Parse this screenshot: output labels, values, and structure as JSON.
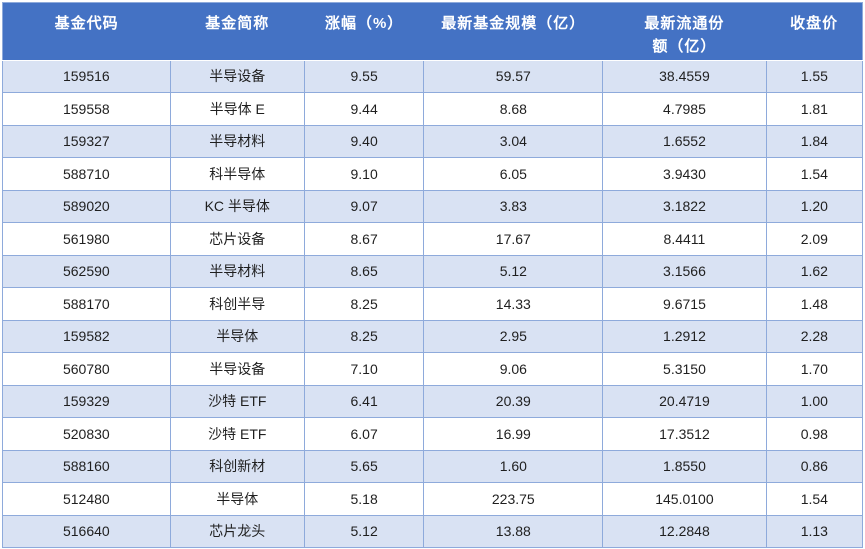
{
  "colors": {
    "header_bg": "#4472C4",
    "header_text": "#FFFFFF",
    "band_row_bg": "#D9E2F3",
    "plain_row_bg": "#FFFFFF",
    "border": "#8EAADB",
    "cell_text": "#1F1F1F"
  },
  "table": {
    "columns": [
      "基金代码",
      "基金简称",
      "涨幅（%）",
      "最新基金规模（亿）",
      "最新流通份额（亿）",
      "收盘价"
    ],
    "column_keys": [
      "fund-code",
      "fund-name",
      "change-pct",
      "fund-size",
      "circulating-shares",
      "close-price"
    ],
    "rows": [
      [
        "159516",
        "半导设备",
        "9.55",
        "59.57",
        "38.4559",
        "1.55"
      ],
      [
        "159558",
        "半导体 E",
        "9.44",
        "8.68",
        "4.7985",
        "1.81"
      ],
      [
        "159327",
        "半导材料",
        "9.40",
        "3.04",
        "1.6552",
        "1.84"
      ],
      [
        "588710",
        "科半导体",
        "9.10",
        "6.05",
        "3.9430",
        "1.54"
      ],
      [
        "589020",
        "KC 半导体",
        "9.07",
        "3.83",
        "3.1822",
        "1.20"
      ],
      [
        "561980",
        "芯片设备",
        "8.67",
        "17.67",
        "8.4411",
        "2.09"
      ],
      [
        "562590",
        "半导材料",
        "8.65",
        "5.12",
        "3.1566",
        "1.62"
      ],
      [
        "588170",
        "科创半导",
        "8.25",
        "14.33",
        "9.6715",
        "1.48"
      ],
      [
        "159582",
        "半导体",
        "8.25",
        "2.95",
        "1.2912",
        "2.28"
      ],
      [
        "560780",
        "半导设备",
        "7.10",
        "9.06",
        "5.3150",
        "1.70"
      ],
      [
        "159329",
        "沙特 ETF",
        "6.41",
        "20.39",
        "20.4719",
        "1.00"
      ],
      [
        "520830",
        "沙特 ETF",
        "6.07",
        "16.99",
        "17.3512",
        "0.98"
      ],
      [
        "588160",
        "科创新材",
        "5.65",
        "1.60",
        "1.8550",
        "0.86"
      ],
      [
        "512480",
        "半导体",
        "5.18",
        "223.75",
        "145.0100",
        "1.54"
      ],
      [
        "516640",
        "芯片龙头",
        "5.12",
        "13.88",
        "12.2848",
        "1.13"
      ]
    ]
  },
  "chart_data": {
    "type": "table",
    "title": "",
    "columns": [
      "基金代码",
      "基金简称",
      "涨幅（%）",
      "最新基金规模（亿）",
      "最新流通份额（亿）",
      "收盘价"
    ],
    "rows": [
      [
        "159516",
        "半导设备",
        9.55,
        59.57,
        38.4559,
        1.55
      ],
      [
        "159558",
        "半导体 E",
        9.44,
        8.68,
        4.7985,
        1.81
      ],
      [
        "159327",
        "半导材料",
        9.4,
        3.04,
        1.6552,
        1.84
      ],
      [
        "588710",
        "科半导体",
        9.1,
        6.05,
        3.943,
        1.54
      ],
      [
        "589020",
        "KC 半导体",
        9.07,
        3.83,
        3.1822,
        1.2
      ],
      [
        "561980",
        "芯片设备",
        8.67,
        17.67,
        8.4411,
        2.09
      ],
      [
        "562590",
        "半导材料",
        8.65,
        5.12,
        3.1566,
        1.62
      ],
      [
        "588170",
        "科创半导",
        8.25,
        14.33,
        9.6715,
        1.48
      ],
      [
        "159582",
        "半导体",
        8.25,
        2.95,
        1.2912,
        2.28
      ],
      [
        "560780",
        "半导设备",
        7.1,
        9.06,
        5.315,
        1.7
      ],
      [
        "159329",
        "沙特 ETF",
        6.41,
        20.39,
        20.4719,
        1.0
      ],
      [
        "520830",
        "沙特 ETF",
        6.07,
        16.99,
        17.3512,
        0.98
      ],
      [
        "588160",
        "科创新材",
        5.65,
        1.6,
        1.855,
        0.86
      ],
      [
        "512480",
        "半导体",
        5.18,
        223.75,
        145.01,
        1.54
      ],
      [
        "516640",
        "芯片龙头",
        5.12,
        13.88,
        12.2848,
        1.13
      ]
    ]
  }
}
